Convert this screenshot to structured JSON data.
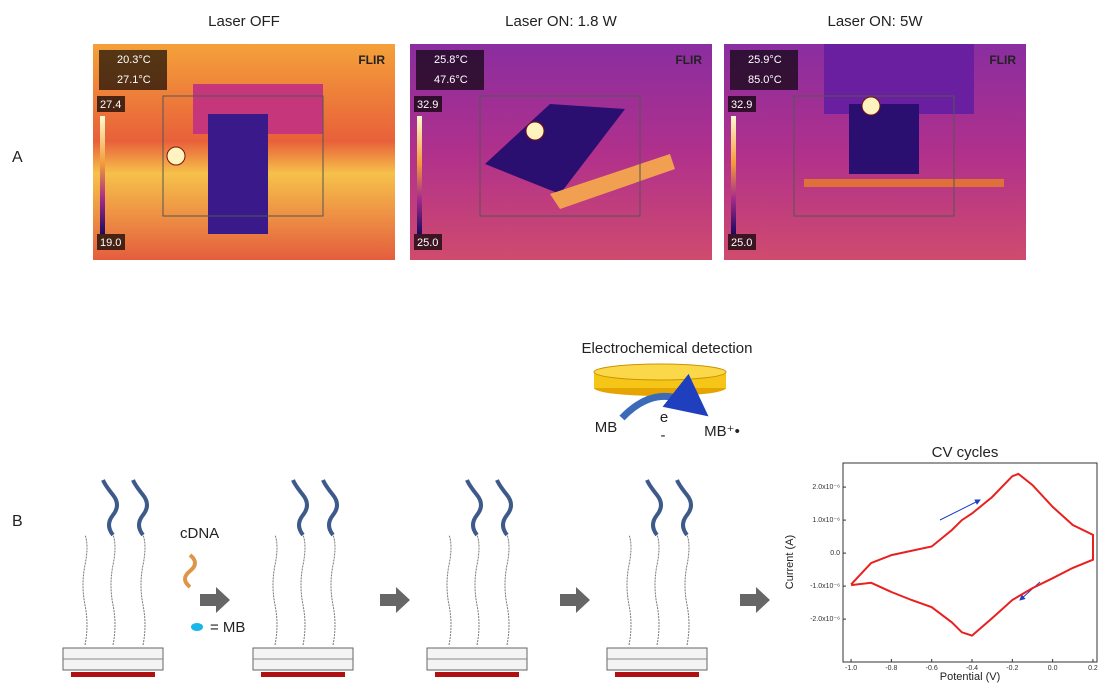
{
  "panel_a": {
    "label": "A",
    "images": [
      {
        "title": "Laser OFF",
        "reading_1": "20.3°C",
        "reading_2": "27.1°C",
        "scale_max": "27.4",
        "scale_min": "19.0",
        "logo": "FLIR"
      },
      {
        "title": "Laser ON: 1.8 W",
        "reading_1": "25.8°C",
        "reading_2": "47.6°C",
        "scale_max": "32.9",
        "scale_min": "25.0",
        "logo": "FLIR"
      },
      {
        "title": "Laser ON: 5W",
        "reading_1": "25.9°C",
        "reading_2": "85.0°C",
        "scale_max": "32.9",
        "scale_min": "25.0",
        "logo": "FLIR"
      }
    ]
  },
  "panel_b": {
    "label": "B",
    "detection_title": "Electrochemical detection",
    "mb_left": "MB",
    "electron": "e",
    "electron_charge": "-",
    "mb_right": "MB⁺•",
    "cdna": "cDNA",
    "mb_legend": "= MB"
  },
  "chart_data": {
    "type": "line",
    "title": "CV cycles",
    "x_label": "Potential (V)",
    "y_label": "Current (A)",
    "xlim": [
      -1.04,
      0.22
    ],
    "ylim": [
      -3.3e-06,
      2.73e-06
    ],
    "xticks": [
      {
        "value": -1.0,
        "label": "-1.0"
      },
      -0.8,
      -0.6,
      -0.4,
      -0.2,
      {
        "value": 0.0,
        "label": "0.0"
      },
      0.2
    ],
    "yticks": [
      {
        "value": -2e-06,
        "label": "-2.0x10⁻⁶"
      },
      {
        "value": -1e-06,
        "label": "-1.0x10⁻⁶"
      },
      {
        "value": 0,
        "label": "0.0"
      },
      {
        "value": 1e-06,
        "label": "1.0x10⁻⁶"
      },
      {
        "value": 2e-06,
        "label": "2.0x10⁻⁶"
      }
    ],
    "series": [
      {
        "color": "#e8201f",
        "x": [
          -1.0,
          -0.9,
          -0.8,
          -0.6,
          -0.5,
          -0.45,
          -0.4,
          -0.3,
          -0.2,
          -0.17,
          -0.1,
          0.0,
          0.1,
          0.2,
          0.2,
          0.1,
          0.0,
          -0.1,
          -0.2,
          -0.3,
          -0.4,
          -0.45,
          -0.5,
          -0.6,
          -0.7,
          -0.8,
          -0.9,
          -1.0
        ],
        "values": [
          -9.5e-07,
          -3e-07,
          -6e-08,
          2e-07,
          7e-07,
          1e-06,
          1.2e-06,
          1.7e-06,
          2.33e-06,
          2.4e-06,
          2.06e-06,
          1.4e-06,
          8.5e-07,
          5.5e-07,
          -2e-07,
          -4.5e-07,
          -7.6e-07,
          -1.06e-06,
          -1.42e-06,
          -1.97e-06,
          -2.5e-06,
          -2.4e-06,
          -2.1e-06,
          -1.64e-06,
          -1.42e-06,
          -1.18e-06,
          -9e-07,
          -9.7e-07
        ]
      }
    ]
  }
}
